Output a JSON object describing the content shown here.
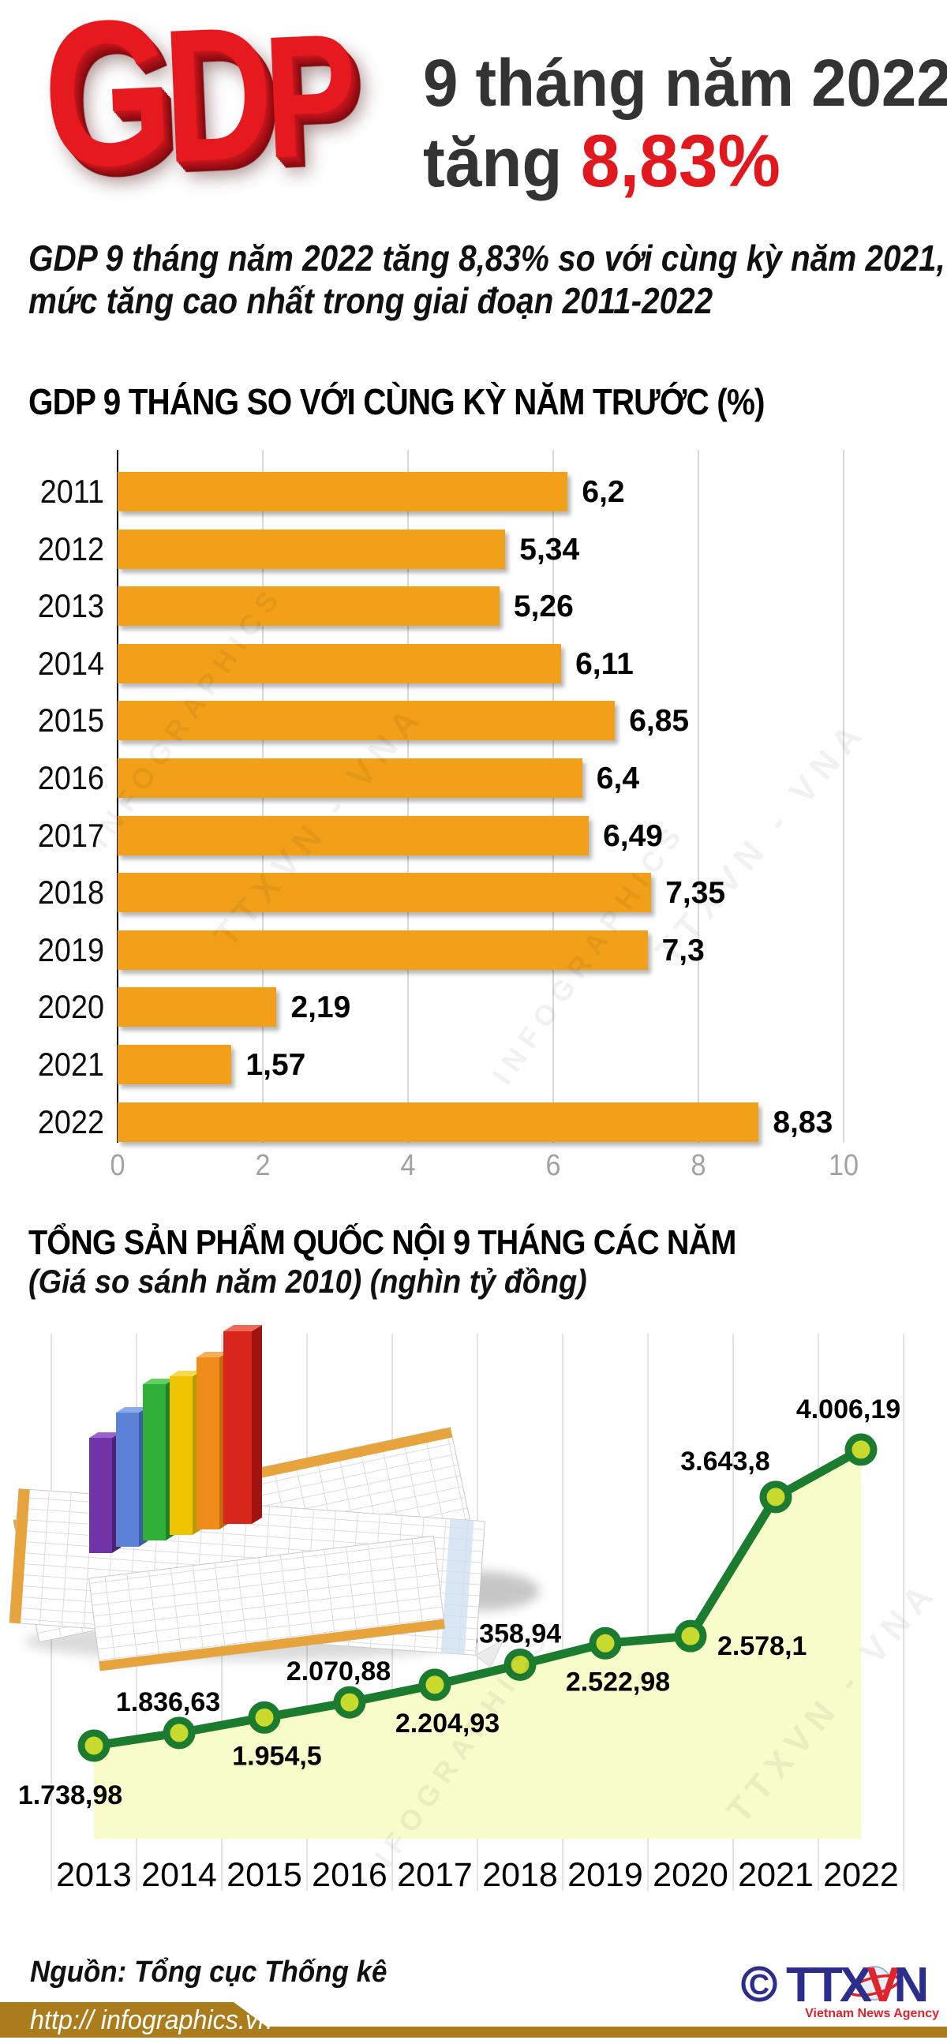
{
  "header": {
    "logo": "GDP",
    "logo_letters": [
      "G",
      "D",
      "P"
    ],
    "title_line1": "9 tháng năm 2022",
    "title_line2_prefix": "tăng ",
    "title_line2_value": "8,83%"
  },
  "intro": {
    "line1": "GDP 9 tháng năm 2022 tăng 8,83% so với cùng kỳ năm 2021,",
    "line2": "mức tăng cao nhất trong giai đoạn 2011-2022"
  },
  "chart_data": [
    {
      "type": "bar",
      "orientation": "horizontal",
      "title": "GDP 9 THÁNG SO VỚI CÙNG KỲ NĂM TRƯỚC (%)",
      "categories": [
        "2011",
        "2012",
        "2013",
        "2014",
        "2015",
        "2016",
        "2017",
        "2018",
        "2019",
        "2020",
        "2021",
        "2022"
      ],
      "values": [
        6.2,
        5.34,
        5.26,
        6.11,
        6.85,
        6.4,
        6.49,
        7.35,
        7.3,
        2.19,
        1.57,
        8.83
      ],
      "value_labels": [
        "6,2",
        "5,34",
        "5,26",
        "6,11",
        "6,85",
        "6,4",
        "6,49",
        "7,35",
        "7,3",
        "2,19",
        "1,57",
        "8,83"
      ],
      "xlim": [
        0,
        10
      ],
      "x_ticks": [
        0,
        2,
        4,
        6,
        8,
        10
      ],
      "grid": true,
      "bar_color": "#f2a019"
    },
    {
      "type": "line",
      "title": "TỔNG SẢN PHẨM QUỐC NỘI 9 THÁNG CÁC NĂM",
      "subtitle": "(Giá so sánh năm 2010) (nghìn tỷ đồng)",
      "categories": [
        "2013",
        "2014",
        "2015",
        "2016",
        "2017",
        "2018",
        "2019",
        "2020",
        "2021",
        "2022"
      ],
      "values": [
        1738.98,
        1836.63,
        1954.5,
        2070.88,
        2204.93,
        2358.94,
        2522.98,
        2578.1,
        3643.8,
        4006.19
      ],
      "point_labels": [
        "1.738,98",
        "1.836,63",
        "1.954,5",
        "2.070,88",
        "2.204,93",
        "2.358,94",
        "2.522,98",
        "2.578,1",
        "3.643,8",
        "4.006,19"
      ],
      "label_positions": [
        "below-left",
        "above",
        "below",
        "above",
        "below",
        "above",
        "below",
        "right",
        "above-left",
        "above-last"
      ],
      "line_color": "#1b7b2f",
      "marker_fill": "#c9da2f",
      "area_fill": "#f8fbca",
      "grid": true,
      "legend": false
    }
  ],
  "watermarks": [
    "INFOGRAPHICS",
    "TTXVN - VNA"
  ],
  "footer": {
    "source": "Nguồn: Tổng cục Thống kê",
    "url": "http:// infographics.vn",
    "agency_copyright": "©",
    "agency_name_part1": "TTX",
    "agency_name_part2": "V",
    "agency_name_part3": "N",
    "agency_tagline": "Vietnam News Agency"
  },
  "colors": {
    "accent_red": "#e1191f",
    "bar_orange": "#f2a019",
    "line_green": "#1b7b2f",
    "marker_green_yellow": "#c9da2f",
    "area_yellow": "#f8fbca",
    "footer_gold": "#ab7c1c",
    "agency_blue": "#2b2e8c",
    "agency_red": "#e0242c"
  }
}
